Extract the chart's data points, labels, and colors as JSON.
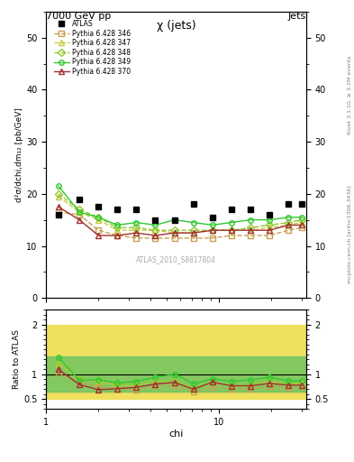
{
  "title_top": "7000 GeV pp",
  "title_right": "Jets",
  "plot_title": "χ (jets)",
  "ylabel_main": "d²σ/dchi,dm₁₂ [pb/GeV]",
  "ylabel_ratio": "Ratio to ATLAS",
  "xlabel": "chi",
  "watermark": "ATLAS_2010_S8817804",
  "right_label_top": "Rivet 3.1.10, ≥ 3.1M events",
  "right_label_bottom": "mcplots.cern.ch [arXiv:1306.3436]",
  "atlas_x": [
    1.18,
    1.56,
    2.01,
    2.59,
    3.33,
    4.29,
    5.53,
    7.12,
    9.17,
    11.8,
    15.2,
    19.6,
    25.24,
    30.0
  ],
  "atlas_y": [
    16.0,
    19.0,
    17.5,
    17.0,
    17.0,
    15.0,
    15.0,
    18.0,
    15.5,
    17.0,
    17.0,
    16.0,
    18.0,
    18.0
  ],
  "p346_y": [
    16.5,
    16.0,
    13.0,
    12.0,
    11.5,
    11.5,
    11.5,
    11.5,
    11.5,
    12.0,
    12.0,
    12.0,
    13.0,
    13.5
  ],
  "p346_color": "#c8a050",
  "p346_label": "Pythia 6.428 346",
  "p347_y": [
    19.5,
    16.5,
    15.0,
    13.0,
    13.0,
    13.0,
    12.5,
    12.5,
    13.0,
    13.0,
    13.0,
    13.5,
    14.0,
    14.5
  ],
  "p347_color": "#c8c840",
  "p347_label": "Pythia 6.428 347",
  "p348_y": [
    20.0,
    17.0,
    15.5,
    13.5,
    13.5,
    13.0,
    13.0,
    13.0,
    13.0,
    13.0,
    13.5,
    14.0,
    14.5,
    15.0
  ],
  "p348_color": "#90c830",
  "p348_label": "Pythia 6.428 348",
  "p349_y": [
    21.5,
    16.5,
    15.5,
    14.0,
    14.5,
    14.0,
    15.0,
    14.5,
    14.0,
    14.5,
    15.0,
    15.0,
    15.5,
    15.5
  ],
  "p349_color": "#30c830",
  "p349_label": "Pythia 6.428 349",
  "p370_y": [
    17.5,
    15.0,
    12.0,
    12.0,
    12.5,
    12.0,
    12.5,
    12.5,
    13.0,
    13.0,
    13.0,
    13.0,
    14.0,
    14.0
  ],
  "p370_color": "#a03030",
  "p370_label": "Pythia 6.428 370",
  "ylim_main": [
    0,
    55
  ],
  "ylim_ratio": [
    0.3,
    2.3
  ],
  "yticks_main": [
    0,
    10,
    20,
    30,
    40,
    50
  ],
  "yticks_ratio": [
    0.5,
    1.0,
    2.0
  ],
  "band_yellow_low": 0.5,
  "band_yellow_high": 2.0,
  "band_green_low": 0.65,
  "band_green_high": 1.35
}
